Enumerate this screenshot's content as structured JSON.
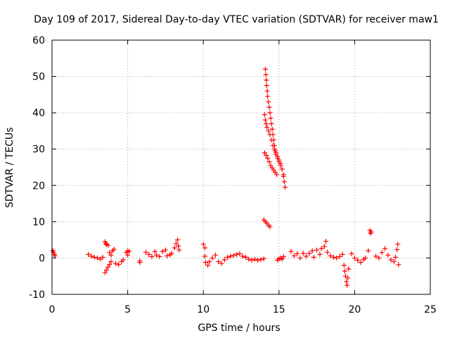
{
  "chart_data": {
    "type": "scatter",
    "title": "Day 109 of 2017, Sidereal Day-to-day VTEC variation (SDTVAR) for receiver maw1",
    "xlabel": "GPS time / hours",
    "ylabel": "SDTVAR / TECUs",
    "xlim": [
      0,
      25
    ],
    "ylim": [
      -10,
      60
    ],
    "xticks": [
      0,
      5,
      10,
      15,
      20,
      25
    ],
    "yticks": [
      -10,
      0,
      10,
      20,
      30,
      40,
      50,
      60
    ],
    "grid": true,
    "marker": "+",
    "color": "#ff0000",
    "series": [
      {
        "name": "SDTVAR",
        "points": [
          [
            0.05,
            2.0
          ],
          [
            0.1,
            1.6
          ],
          [
            0.15,
            1.0
          ],
          [
            0.2,
            0.6
          ],
          [
            2.4,
            1.0
          ],
          [
            2.6,
            0.5
          ],
          [
            2.8,
            0.2
          ],
          [
            3.0,
            0.0
          ],
          [
            3.2,
            -0.3
          ],
          [
            3.35,
            0.2
          ],
          [
            3.5,
            4.5
          ],
          [
            3.55,
            4.0
          ],
          [
            3.6,
            3.7
          ],
          [
            3.7,
            3.5
          ],
          [
            3.5,
            -4.0
          ],
          [
            3.6,
            -3.3
          ],
          [
            3.7,
            -2.5
          ],
          [
            3.8,
            -1.8
          ],
          [
            3.9,
            -1.0
          ],
          [
            3.8,
            1.5
          ],
          [
            4.0,
            2.0
          ],
          [
            4.1,
            2.4
          ],
          [
            3.9,
            0.8
          ],
          [
            4.2,
            -1.5
          ],
          [
            4.4,
            -1.8
          ],
          [
            4.6,
            -1.0
          ],
          [
            4.7,
            -0.5
          ],
          [
            4.9,
            1.5
          ],
          [
            5.0,
            2.0
          ],
          [
            5.1,
            1.8
          ],
          [
            5.0,
            0.8
          ],
          [
            5.8,
            -0.8
          ],
          [
            5.8,
            -1.2
          ],
          [
            6.2,
            1.6
          ],
          [
            6.4,
            1.0
          ],
          [
            6.6,
            0.4
          ],
          [
            6.8,
            1.8
          ],
          [
            6.9,
            0.8
          ],
          [
            7.1,
            0.4
          ],
          [
            7.3,
            1.8
          ],
          [
            7.5,
            2.2
          ],
          [
            7.6,
            0.6
          ],
          [
            7.8,
            0.9
          ],
          [
            7.9,
            1.3
          ],
          [
            8.1,
            2.8
          ],
          [
            8.2,
            4.0
          ],
          [
            8.3,
            5.0
          ],
          [
            8.35,
            3.3
          ],
          [
            8.4,
            2.2
          ],
          [
            10.0,
            3.8
          ],
          [
            10.1,
            2.8
          ],
          [
            10.1,
            0.5
          ],
          [
            10.15,
            -1.2
          ],
          [
            10.3,
            -2.0
          ],
          [
            10.4,
            -1.0
          ],
          [
            10.6,
            0.0
          ],
          [
            10.8,
            0.8
          ],
          [
            11.0,
            -1.0
          ],
          [
            11.2,
            -1.5
          ],
          [
            11.4,
            -0.5
          ],
          [
            11.6,
            0.2
          ],
          [
            11.8,
            0.5
          ],
          [
            12.0,
            0.7
          ],
          [
            12.2,
            1.0
          ],
          [
            12.4,
            1.2
          ],
          [
            12.6,
            0.5
          ],
          [
            12.8,
            0.2
          ],
          [
            13.0,
            -0.3
          ],
          [
            13.2,
            -0.6
          ],
          [
            13.4,
            -0.3
          ],
          [
            13.6,
            -0.6
          ],
          [
            13.8,
            -0.4
          ],
          [
            14.0,
            -0.2
          ],
          [
            14.1,
            52.0
          ],
          [
            14.13,
            50.5
          ],
          [
            14.16,
            49.0
          ],
          [
            14.19,
            47.5
          ],
          [
            14.22,
            46.0
          ],
          [
            14.25,
            44.5
          ],
          [
            14.3,
            43.0
          ],
          [
            14.35,
            41.5
          ],
          [
            14.4,
            40.0
          ],
          [
            14.45,
            38.5
          ],
          [
            14.5,
            37.0
          ],
          [
            14.55,
            35.5
          ],
          [
            14.6,
            34.0
          ],
          [
            14.65,
            32.5
          ],
          [
            14.7,
            31.0
          ],
          [
            14.75,
            29.5
          ],
          [
            14.8,
            28.5
          ],
          [
            14.9,
            27.5
          ],
          [
            15.0,
            26.5
          ],
          [
            15.1,
            25.5
          ],
          [
            15.2,
            24.5
          ],
          [
            15.3,
            23.0
          ],
          [
            14.05,
            39.5
          ],
          [
            14.1,
            38.0
          ],
          [
            14.15,
            37.0
          ],
          [
            14.2,
            36.0
          ],
          [
            14.3,
            35.0
          ],
          [
            14.4,
            34.0
          ],
          [
            14.5,
            32.5
          ],
          [
            14.6,
            31.0
          ],
          [
            14.7,
            30.0
          ],
          [
            14.8,
            29.0
          ],
          [
            14.9,
            28.0
          ],
          [
            15.0,
            27.0
          ],
          [
            15.1,
            26.0
          ],
          [
            15.2,
            24.5
          ],
          [
            15.3,
            22.5
          ],
          [
            15.35,
            21.0
          ],
          [
            15.4,
            19.5
          ],
          [
            14.05,
            29.0
          ],
          [
            14.15,
            28.3
          ],
          [
            14.25,
            27.5
          ],
          [
            14.35,
            26.5
          ],
          [
            14.45,
            25.5
          ],
          [
            14.55,
            24.8
          ],
          [
            14.65,
            24.2
          ],
          [
            14.75,
            23.6
          ],
          [
            14.85,
            23.0
          ],
          [
            14.0,
            10.5
          ],
          [
            14.1,
            10.0
          ],
          [
            14.2,
            9.6
          ],
          [
            14.3,
            9.0
          ],
          [
            14.4,
            8.6
          ],
          [
            14.9,
            -0.6
          ],
          [
            15.0,
            -0.2
          ],
          [
            15.1,
            0.0
          ],
          [
            15.2,
            -0.3
          ],
          [
            15.3,
            0.4
          ],
          [
            15.8,
            1.8
          ],
          [
            16.0,
            0.6
          ],
          [
            16.2,
            1.2
          ],
          [
            16.4,
            0.0
          ],
          [
            16.6,
            1.3
          ],
          [
            16.8,
            0.5
          ],
          [
            17.0,
            1.3
          ],
          [
            17.2,
            2.0
          ],
          [
            17.3,
            0.2
          ],
          [
            17.5,
            2.2
          ],
          [
            17.7,
            1.0
          ],
          [
            17.8,
            2.6
          ],
          [
            18.0,
            3.2
          ],
          [
            18.1,
            4.6
          ],
          [
            18.2,
            1.6
          ],
          [
            18.4,
            0.6
          ],
          [
            18.6,
            0.2
          ],
          [
            18.8,
            0.0
          ],
          [
            19.0,
            0.4
          ],
          [
            19.2,
            1.0
          ],
          [
            19.3,
            -2.0
          ],
          [
            19.35,
            -3.6
          ],
          [
            19.4,
            -5.0
          ],
          [
            19.45,
            -6.5
          ],
          [
            19.5,
            -7.5
          ],
          [
            19.55,
            -5.5
          ],
          [
            19.6,
            -3.0
          ],
          [
            19.8,
            1.2
          ],
          [
            20.0,
            0.0
          ],
          [
            20.2,
            -0.6
          ],
          [
            20.4,
            -1.2
          ],
          [
            20.6,
            -0.4
          ],
          [
            20.7,
            0.0
          ],
          [
            20.9,
            2.0
          ],
          [
            21.0,
            7.6
          ],
          [
            21.05,
            6.8
          ],
          [
            21.1,
            7.2
          ],
          [
            21.4,
            0.5
          ],
          [
            21.6,
            0.0
          ],
          [
            21.8,
            1.5
          ],
          [
            22.0,
            2.6
          ],
          [
            22.2,
            0.8
          ],
          [
            22.4,
            -0.5
          ],
          [
            22.6,
            -1.0
          ],
          [
            22.7,
            0.2
          ],
          [
            22.8,
            2.3
          ],
          [
            22.85,
            3.8
          ],
          [
            22.9,
            -1.8
          ]
        ]
      }
    ]
  }
}
